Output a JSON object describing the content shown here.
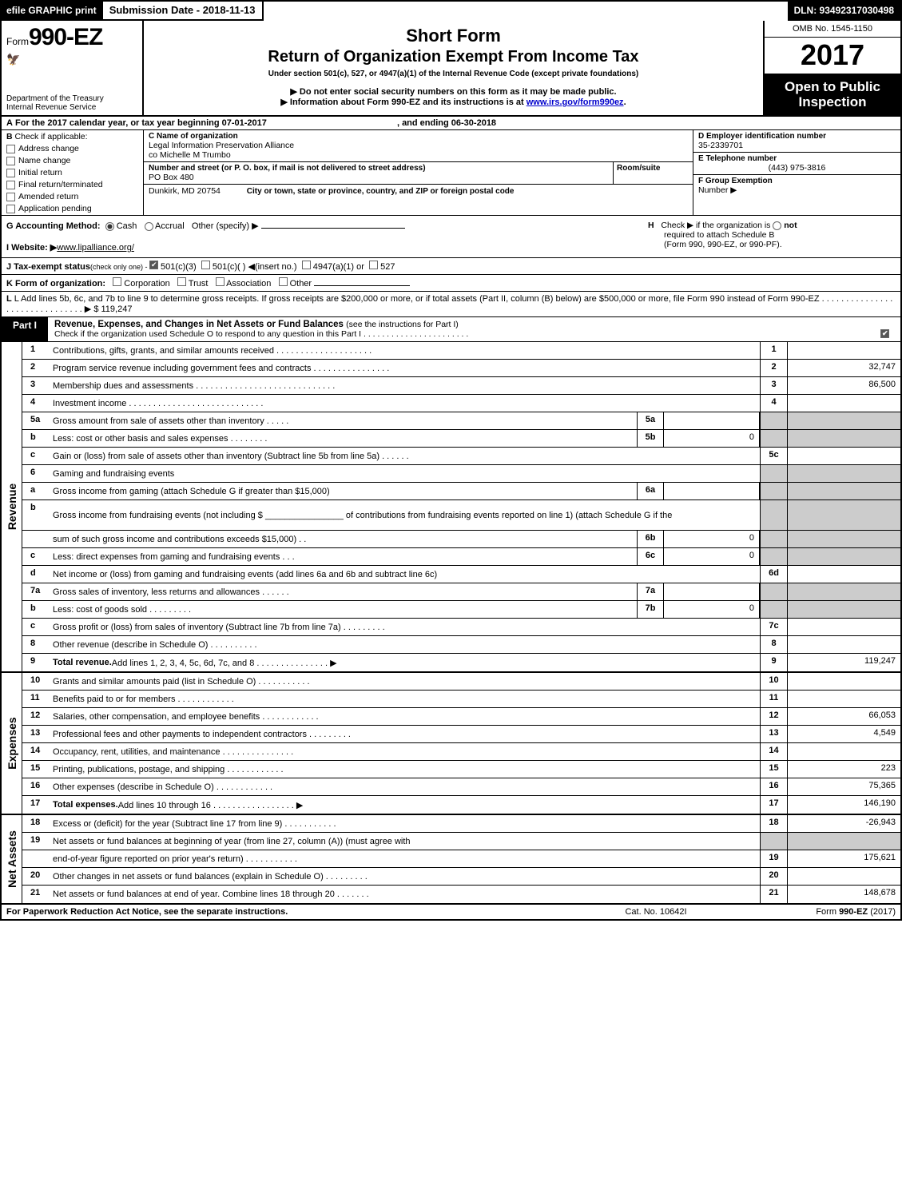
{
  "topstrip": {
    "efile": "efile GRAPHIC print",
    "submission": "Submission Date - 2018-11-13",
    "dln": "DLN: 93492317030498"
  },
  "header": {
    "form_prefix": "Form",
    "form_no": "990-EZ",
    "dept1": "Department of the Treasury",
    "dept2": "Internal Revenue Service",
    "title1": "Short Form",
    "title2": "Return of Organization Exempt From Income Tax",
    "subtitle": "Under section 501(c), 527, or 4947(a)(1) of the Internal Revenue Code (except private foundations)",
    "note1": "▶ Do not enter social security numbers on this form as it may be made public.",
    "note2_pre": "▶ Information about Form 990-EZ and its instructions is at ",
    "note2_link": "www.irs.gov/form990ez",
    "note2_post": ".",
    "omb": "OMB No. 1545-1150",
    "year": "2017",
    "open1": "Open to Public",
    "open2": "Inspection"
  },
  "rowA": {
    "label": "A",
    "text_pre": "For the 2017 calendar year, or tax year beginning 07-01-2017",
    "text_mid": ", and ending 06-30-2018"
  },
  "sectionB": {
    "label": "B",
    "title": "Check if applicable:",
    "items": [
      "Address change",
      "Name change",
      "Initial return",
      "Final return/terminated",
      "Amended return",
      "Application pending"
    ]
  },
  "sectionC": {
    "name_lbl": "C Name of organization",
    "name1": "Legal Information Preservation Alliance",
    "name2": "co Michelle M Trumbo",
    "addr_lbl": "Number and street (or P. O. box, if mail is not delivered to street address)",
    "room_lbl": "Room/suite",
    "addr": "PO Box 480",
    "city_lbl": "City or town, state or province, country, and ZIP or foreign postal code",
    "city": "Dunkirk, MD  20754"
  },
  "sectionD": {
    "lbl": "D Employer identification number",
    "val": "35-2339701"
  },
  "sectionE": {
    "lbl": "E Telephone number",
    "val": "(443) 975-3816"
  },
  "sectionF": {
    "lbl": "F Group Exemption",
    "lbl2": "Number  ▶"
  },
  "rowG": {
    "g_pre": "G Accounting Method:",
    "g_cash": "Cash",
    "g_accrual": "Accrual",
    "g_other": "Other (specify) ▶",
    "h_label": "H",
    "h_text1": "Check ▶       if the organization is ",
    "h_not": "not",
    "h_text2": "required to attach Schedule B",
    "h_text3": "(Form 990, 990-EZ, or 990-PF)."
  },
  "rowI": {
    "lbl": "I Website: ▶",
    "link": "www.lipalliance.org/"
  },
  "rowJ": {
    "pre": "J Tax-exempt status",
    "sm": "(check only one) - ",
    "o1": "501(c)(3)",
    "o2": "501(c)(  ) ◀(insert no.)",
    "o3": "4947(a)(1) or",
    "o4": "527"
  },
  "rowK": {
    "pre": "K Form of organization:",
    "o1": "Corporation",
    "o2": "Trust",
    "o3": "Association",
    "o4": "Other"
  },
  "rowL": {
    "text": "L Add lines 5b, 6c, and 7b to line 9 to determine gross receipts. If gross receipts are $200,000 or more, or if total assets (Part II, column (B) below) are $500,000 or more, file Form 990 instead of Form 990-EZ  .  .  .  .  .  .  .  .  .  .  .  .  .  .  .  .  .  .  .  .  .  .  .  .  .  .  .  .  .  .  .   ▶ $ 119,247"
  },
  "part1": {
    "label": "Part I",
    "title": "Revenue, Expenses, and Changes in Net Assets or Fund Balances ",
    "title_sm": "(see the instructions for Part I)",
    "sub": "Check if the organization used Schedule O to respond to any question in this Part I .  .  .  .  .  .  .  .  .  .  .  .  .  .  .  .  .  .  .  .  .  .  .  "
  },
  "sections": {
    "revenue_label": "Revenue",
    "expenses_label": "Expenses",
    "netassets_label": "Net Assets"
  },
  "lines": [
    {
      "n": "1",
      "d": "Contributions, gifts, grants, and similar amounts received  .  .  .  .  .  .  .  .  .  .  .  .  .  .  .  .  .  .  .  .",
      "rn": "1",
      "rv": ""
    },
    {
      "n": "2",
      "d": "Program service revenue including government fees and contracts  .  .  .  .  .  .  .  .  .  .  .  .  .  .  .  .",
      "rn": "2",
      "rv": "32,747"
    },
    {
      "n": "3",
      "d": "Membership dues and assessments  .  .  .  .  .  .  .  .  .  .  .  .  .  .  .  .  .  .  .  .  .  .  .  .  .  .  .  .  .",
      "rn": "3",
      "rv": "86,500"
    },
    {
      "n": "4",
      "d": "Investment income  .  .  .  .  .  .  .  .  .  .  .  .  .  .  .  .  .  .  .  .  .  .  .  .  .  .  .  .",
      "rn": "4",
      "rv": ""
    },
    {
      "n": "5a",
      "d": "Gross amount from sale of assets other than inventory  .  .  .  .  .",
      "mn": "5a",
      "mv": "",
      "shade": true
    },
    {
      "n": "b",
      "d": "Less: cost or other basis and sales expenses  .  .  .  .  .  .  .  .",
      "mn": "5b",
      "mv": "0",
      "shade": true
    },
    {
      "n": "c",
      "d": "Gain or (loss) from sale of assets other than inventory (Subtract line 5b from line 5a)        .    .    .    .    .    .",
      "rn": "5c",
      "rv": ""
    },
    {
      "n": "6",
      "d": "Gaming and fundraising events",
      "shade": true,
      "noR": true
    },
    {
      "n": "a",
      "d": "Gross income from gaming (attach Schedule G if greater than $15,000)",
      "mn": "6a",
      "mv": "",
      "shade": true
    },
    {
      "n": "b",
      "d": "Gross income from fundraising events (not including $ ________________ of contributions from fundraising events reported on line 1) (attach Schedule G if the",
      "shade": true,
      "noR": true,
      "tall": true
    },
    {
      "n": "",
      "d": "sum of such gross income and contributions exceeds $15,000)        .    .",
      "mn": "6b",
      "mv": "0",
      "shade": true
    },
    {
      "n": "c",
      "d": "Less: direct expenses from gaming and fundraising events        .    .    .",
      "mn": "6c",
      "mv": "0",
      "shade": true
    },
    {
      "n": "d",
      "d": "Net income or (loss) from gaming and fundraising events (add lines 6a and 6b and subtract line 6c)",
      "rn": "6d",
      "rv": ""
    },
    {
      "n": "7a",
      "d": "Gross sales of inventory, less returns and allowances        .    .    .    .    .    .",
      "mn": "7a",
      "mv": "",
      "shade": true
    },
    {
      "n": "b",
      "d": "Less: cost of goods sold                    .    .    .    .    .    .    .    .    .",
      "mn": "7b",
      "mv": "0",
      "shade": true
    },
    {
      "n": "c",
      "d": "Gross profit or (loss) from sales of inventory (Subtract line 7b from line 7a)        .    .    .    .    .    .    .    .    .",
      "rn": "7c",
      "rv": ""
    },
    {
      "n": "8",
      "d": "Other revenue (describe in Schedule O)                        .    .    .    .    .    .    .    .    .    .",
      "rn": "8",
      "rv": ""
    },
    {
      "n": "9",
      "d": "Total revenue. Add lines 1, 2, 3, 4, 5c, 6d, 7c, and 8        .    .    .    .    .    .    .    .    .    .    .    .    .    .    .   ▶",
      "rn": "9",
      "rv": "119,247",
      "bold": true
    }
  ],
  "exp_lines": [
    {
      "n": "10",
      "d": "Grants and similar amounts paid (list in Schedule O)                .    .    .    .    .    .    .    .    .    .    .",
      "rn": "10",
      "rv": ""
    },
    {
      "n": "11",
      "d": "Benefits paid to or for members                        .    .    .    .    .    .    .    .    .    .    .    .",
      "rn": "11",
      "rv": ""
    },
    {
      "n": "12",
      "d": "Salaries, other compensation, and employee benefits            .    .    .    .    .    .    .    .    .    .    .    .",
      "rn": "12",
      "rv": "66,053"
    },
    {
      "n": "13",
      "d": "Professional fees and other payments to independent contractors        .    .    .    .    .    .    .    .    .",
      "rn": "13",
      "rv": "4,549"
    },
    {
      "n": "14",
      "d": "Occupancy, rent, utilities, and maintenance            .    .    .    .    .    .    .    .    .    .    .    .    .    .    .",
      "rn": "14",
      "rv": ""
    },
    {
      "n": "15",
      "d": "Printing, publications, postage, and shipping                .    .    .    .    .    .    .    .    .    .    .    .",
      "rn": "15",
      "rv": "223"
    },
    {
      "n": "16",
      "d": "Other expenses (describe in Schedule O)                    .    .    .    .    .    .    .    .    .    .    .    .",
      "rn": "16",
      "rv": "75,365"
    },
    {
      "n": "17",
      "d": "Total expenses. Add lines 10 through 16            .    .    .    .    .    .    .    .    .    .    .    .    .    .    .    .    .   ▶",
      "rn": "17",
      "rv": "146,190",
      "bold": true
    }
  ],
  "na_lines": [
    {
      "n": "18",
      "d": "Excess or (deficit) for the year (Subtract line 17 from line 9)            .    .    .    .    .    .    .    .    .    .    .",
      "rn": "18",
      "rv": "-26,943"
    },
    {
      "n": "19",
      "d": "Net assets or fund balances at beginning of year (from line 27, column (A)) (must agree with",
      "shade": true,
      "noR": true
    },
    {
      "n": "",
      "d": "end-of-year figure reported on prior year's return)                .    .    .    .    .    .    .    .    .    .    .",
      "rn": "19",
      "rv": "175,621"
    },
    {
      "n": "20",
      "d": "Other changes in net assets or fund balances (explain in Schedule O)        .    .    .    .    .    .    .    .    .",
      "rn": "20",
      "rv": ""
    },
    {
      "n": "21",
      "d": "Net assets or fund balances at end of year. Combine lines 18 through 20            .    .    .    .    .    .    .",
      "rn": "21",
      "rv": "148,678"
    }
  ],
  "footer": {
    "l": "For Paperwork Reduction Act Notice, see the separate instructions.",
    "c": "Cat. No. 10642I",
    "r_pre": "Form ",
    "r_bold": "990-EZ",
    "r_post": " (2017)"
  },
  "colors": {
    "black": "#000000",
    "shade": "#cccccc",
    "link": "#0000cc"
  }
}
